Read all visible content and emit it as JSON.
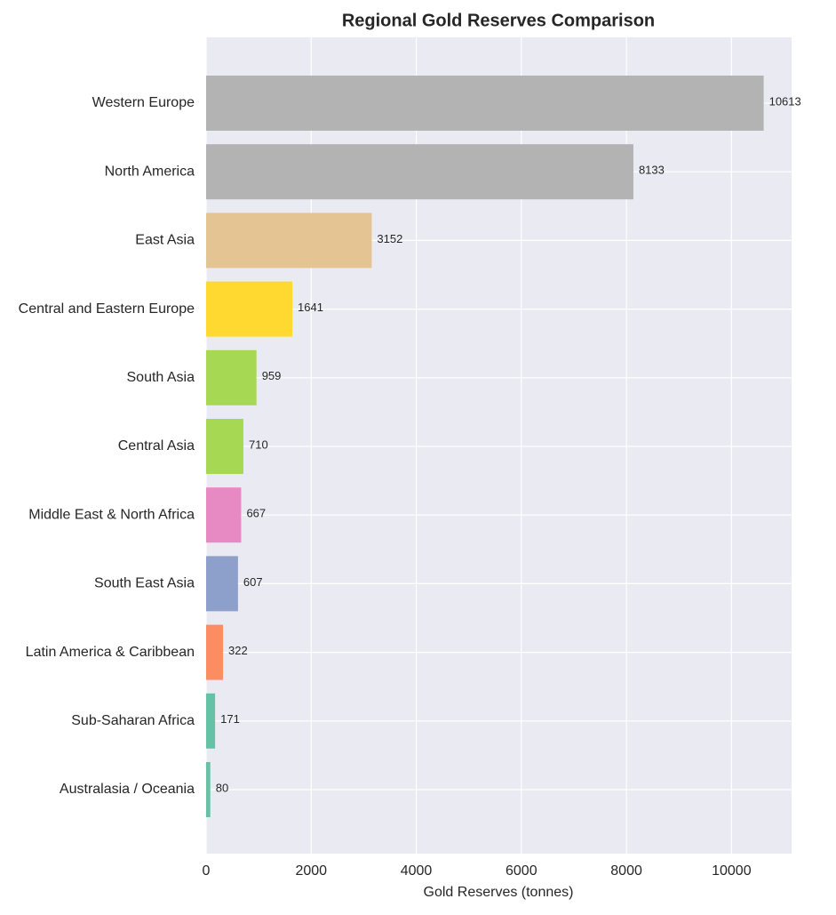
{
  "chart_data": {
    "type": "barh",
    "title": "Regional Gold Reserves Comparison",
    "x_label": "Gold Reserves (tonnes)",
    "categories": [
      "Western Europe",
      "North America",
      "East Asia",
      "Central and Eastern Europe",
      "South Asia",
      "Central Asia",
      "Middle East & North Africa",
      "South East Asia",
      "Latin America & Caribbean",
      "Sub-Saharan Africa",
      "Australasia / Oceania"
    ],
    "values": [
      10613,
      8133,
      3152,
      1641,
      959,
      710,
      667,
      607,
      322,
      171,
      80
    ],
    "colors": [
      "#b3b3b3",
      "#b3b3b3",
      "#e5c494",
      "#ffd92f",
      "#a6d854",
      "#a6d854",
      "#e78ac3",
      "#8da0cb",
      "#fc8d62",
      "#66c2a5",
      "#66c2a5"
    ],
    "xlim": [
      0,
      11144
    ],
    "xticks": [
      0,
      2000,
      4000,
      6000,
      8000,
      10000
    ],
    "grid": true
  }
}
